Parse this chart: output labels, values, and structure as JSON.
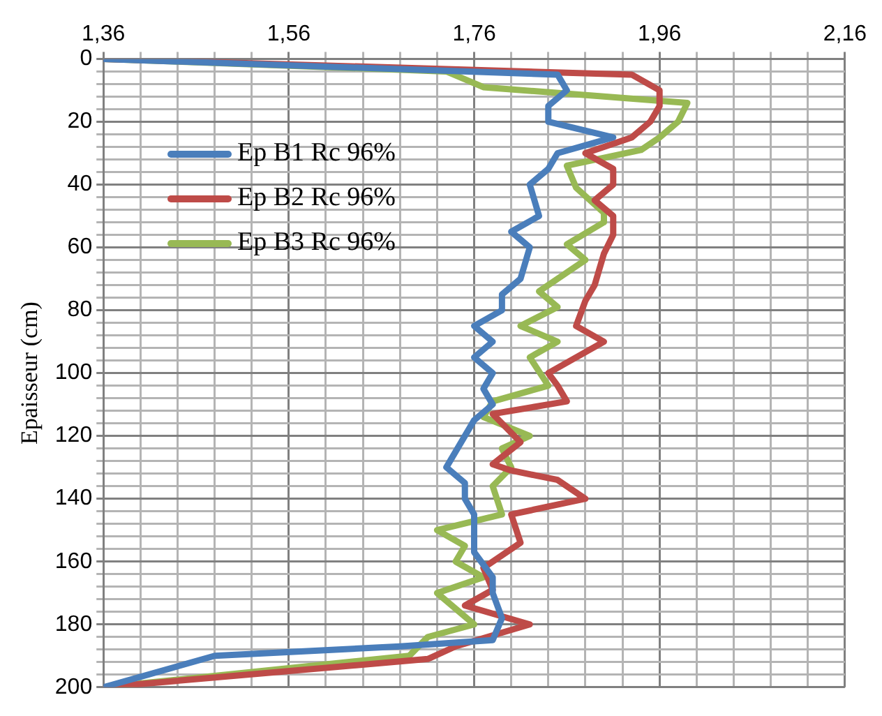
{
  "chart_data": {
    "type": "line",
    "ylabel": "Epaisseur (cm)",
    "legend": "top left",
    "grid": true,
    "xlim": [
      1.36,
      2.16
    ],
    "xticks": [
      {
        "value": 1.36,
        "label": "1,36"
      },
      {
        "value": 1.4,
        "label": null
      },
      {
        "value": 1.44,
        "label": null
      },
      {
        "value": 1.48,
        "label": null
      },
      {
        "value": 1.52,
        "label": null
      },
      {
        "value": 1.56,
        "label": "1,56"
      },
      {
        "value": 1.6,
        "label": null
      },
      {
        "value": 1.64,
        "label": null
      },
      {
        "value": 1.68,
        "label": null
      },
      {
        "value": 1.72,
        "label": null
      },
      {
        "value": 1.76,
        "label": "1,76"
      },
      {
        "value": 1.8,
        "label": null
      },
      {
        "value": 1.84,
        "label": null
      },
      {
        "value": 1.88,
        "label": null
      },
      {
        "value": 1.92,
        "label": null
      },
      {
        "value": 1.96,
        "label": "1,96"
      },
      {
        "value": 2.0,
        "label": null
      },
      {
        "value": 2.04,
        "label": null
      },
      {
        "value": 2.08,
        "label": null
      },
      {
        "value": 2.12,
        "label": null
      },
      {
        "value": 2.16,
        "label": "2,16"
      }
    ],
    "ylim": [
      200,
      0
    ],
    "yticks": [
      0,
      {
        "value": 4,
        "label": null
      },
      {
        "value": 8,
        "label": null
      },
      {
        "value": 12,
        "label": null
      },
      {
        "value": 16,
        "label": null
      },
      20,
      {
        "value": 24,
        "label": null
      },
      {
        "value": 28,
        "label": null
      },
      {
        "value": 32,
        "label": null
      },
      {
        "value": 36,
        "label": null
      },
      40,
      {
        "value": 44,
        "label": null
      },
      {
        "value": 48,
        "label": null
      },
      {
        "value": 52,
        "label": null
      },
      {
        "value": 56,
        "label": null
      },
      60,
      {
        "value": 64,
        "label": null
      },
      {
        "value": 68,
        "label": null
      },
      {
        "value": 72,
        "label": null
      },
      {
        "value": 76,
        "label": null
      },
      80,
      {
        "value": 84,
        "label": null
      },
      {
        "value": 88,
        "label": null
      },
      {
        "value": 92,
        "label": null
      },
      {
        "value": 96,
        "label": null
      },
      100,
      {
        "value": 104,
        "label": null
      },
      {
        "value": 108,
        "label": null
      },
      {
        "value": 112,
        "label": null
      },
      {
        "value": 116,
        "label": null
      },
      120,
      {
        "value": 124,
        "label": null
      },
      {
        "value": 128,
        "label": null
      },
      {
        "value": 132,
        "label": null
      },
      {
        "value": 136,
        "label": null
      },
      140,
      {
        "value": 144,
        "label": null
      },
      {
        "value": 148,
        "label": null
      },
      {
        "value": 152,
        "label": null
      },
      {
        "value": 156,
        "label": null
      },
      160,
      {
        "value": 164,
        "label": null
      },
      {
        "value": 168,
        "label": null
      },
      {
        "value": 172,
        "label": null
      },
      {
        "value": 176,
        "label": null
      },
      180,
      {
        "value": 184,
        "label": null
      },
      {
        "value": 188,
        "label": null
      },
      {
        "value": 192,
        "label": null
      },
      {
        "value": 196,
        "label": null
      },
      200
    ],
    "series": [
      {
        "name": "Ep B1 Rc 96%",
        "color": "#4a7ebb",
        "x": [
          1.36,
          1.85,
          1.86,
          1.84,
          1.84,
          1.91,
          1.85,
          1.84,
          1.82,
          1.83,
          1.8,
          1.82,
          1.81,
          1.79,
          1.79,
          1.76,
          1.78,
          1.76,
          1.78,
          1.77,
          1.78,
          1.76,
          1.75,
          1.74,
          1.73,
          1.75,
          1.75,
          1.76,
          1.76,
          1.78,
          1.78,
          1.79,
          1.78,
          1.68,
          1.48,
          1.36
        ],
        "values": [
          0,
          5,
          10,
          15,
          20,
          25,
          30,
          35,
          40,
          50,
          55,
          60,
          70,
          75,
          80,
          85,
          90,
          95,
          100,
          105,
          110,
          115,
          120,
          125,
          130,
          135,
          140,
          145,
          157,
          165,
          170,
          178,
          185,
          187,
          190,
          200
        ]
      },
      {
        "name": "Ep B2 Rc 96%",
        "color": "#be4b48",
        "x": [
          1.36,
          1.93,
          1.96,
          1.96,
          1.95,
          1.93,
          1.88,
          1.91,
          1.91,
          1.89,
          1.91,
          1.91,
          1.9,
          1.89,
          1.88,
          1.87,
          1.9,
          1.87,
          1.84,
          1.85,
          1.86,
          1.78,
          1.81,
          1.78,
          1.8,
          1.85,
          1.88,
          1.8,
          1.81,
          1.77,
          1.78,
          1.75,
          1.82,
          1.74,
          1.71,
          1.36
        ],
        "values": [
          0,
          5,
          10,
          15,
          20,
          25,
          30,
          35,
          40,
          45,
          50,
          56,
          62,
          72,
          77,
          85,
          90,
          95,
          100,
          104,
          109,
          113,
          122,
          129,
          131,
          134,
          140,
          145,
          154,
          162,
          169,
          174,
          180,
          187,
          191,
          200
        ]
      },
      {
        "name": "Ep B3 Rc 96%",
        "color": "#98b954",
        "x": [
          1.36,
          1.73,
          1.77,
          1.99,
          1.98,
          1.96,
          1.94,
          1.86,
          1.87,
          1.9,
          1.9,
          1.86,
          1.88,
          1.83,
          1.85,
          1.81,
          1.85,
          1.82,
          1.84,
          1.78,
          1.77,
          1.82,
          1.79,
          1.8,
          1.78,
          1.79,
          1.72,
          1.75,
          1.74,
          1.77,
          1.72,
          1.76,
          1.71,
          1.69,
          1.36
        ],
        "values": [
          0,
          4,
          9,
          14,
          20,
          25,
          29,
          34,
          41,
          49,
          52,
          59,
          64,
          74,
          79,
          85,
          90,
          95,
          104,
          109,
          114,
          120,
          124,
          130,
          136,
          145,
          150,
          155,
          160,
          165,
          170,
          180,
          184,
          190,
          200
        ]
      }
    ]
  }
}
